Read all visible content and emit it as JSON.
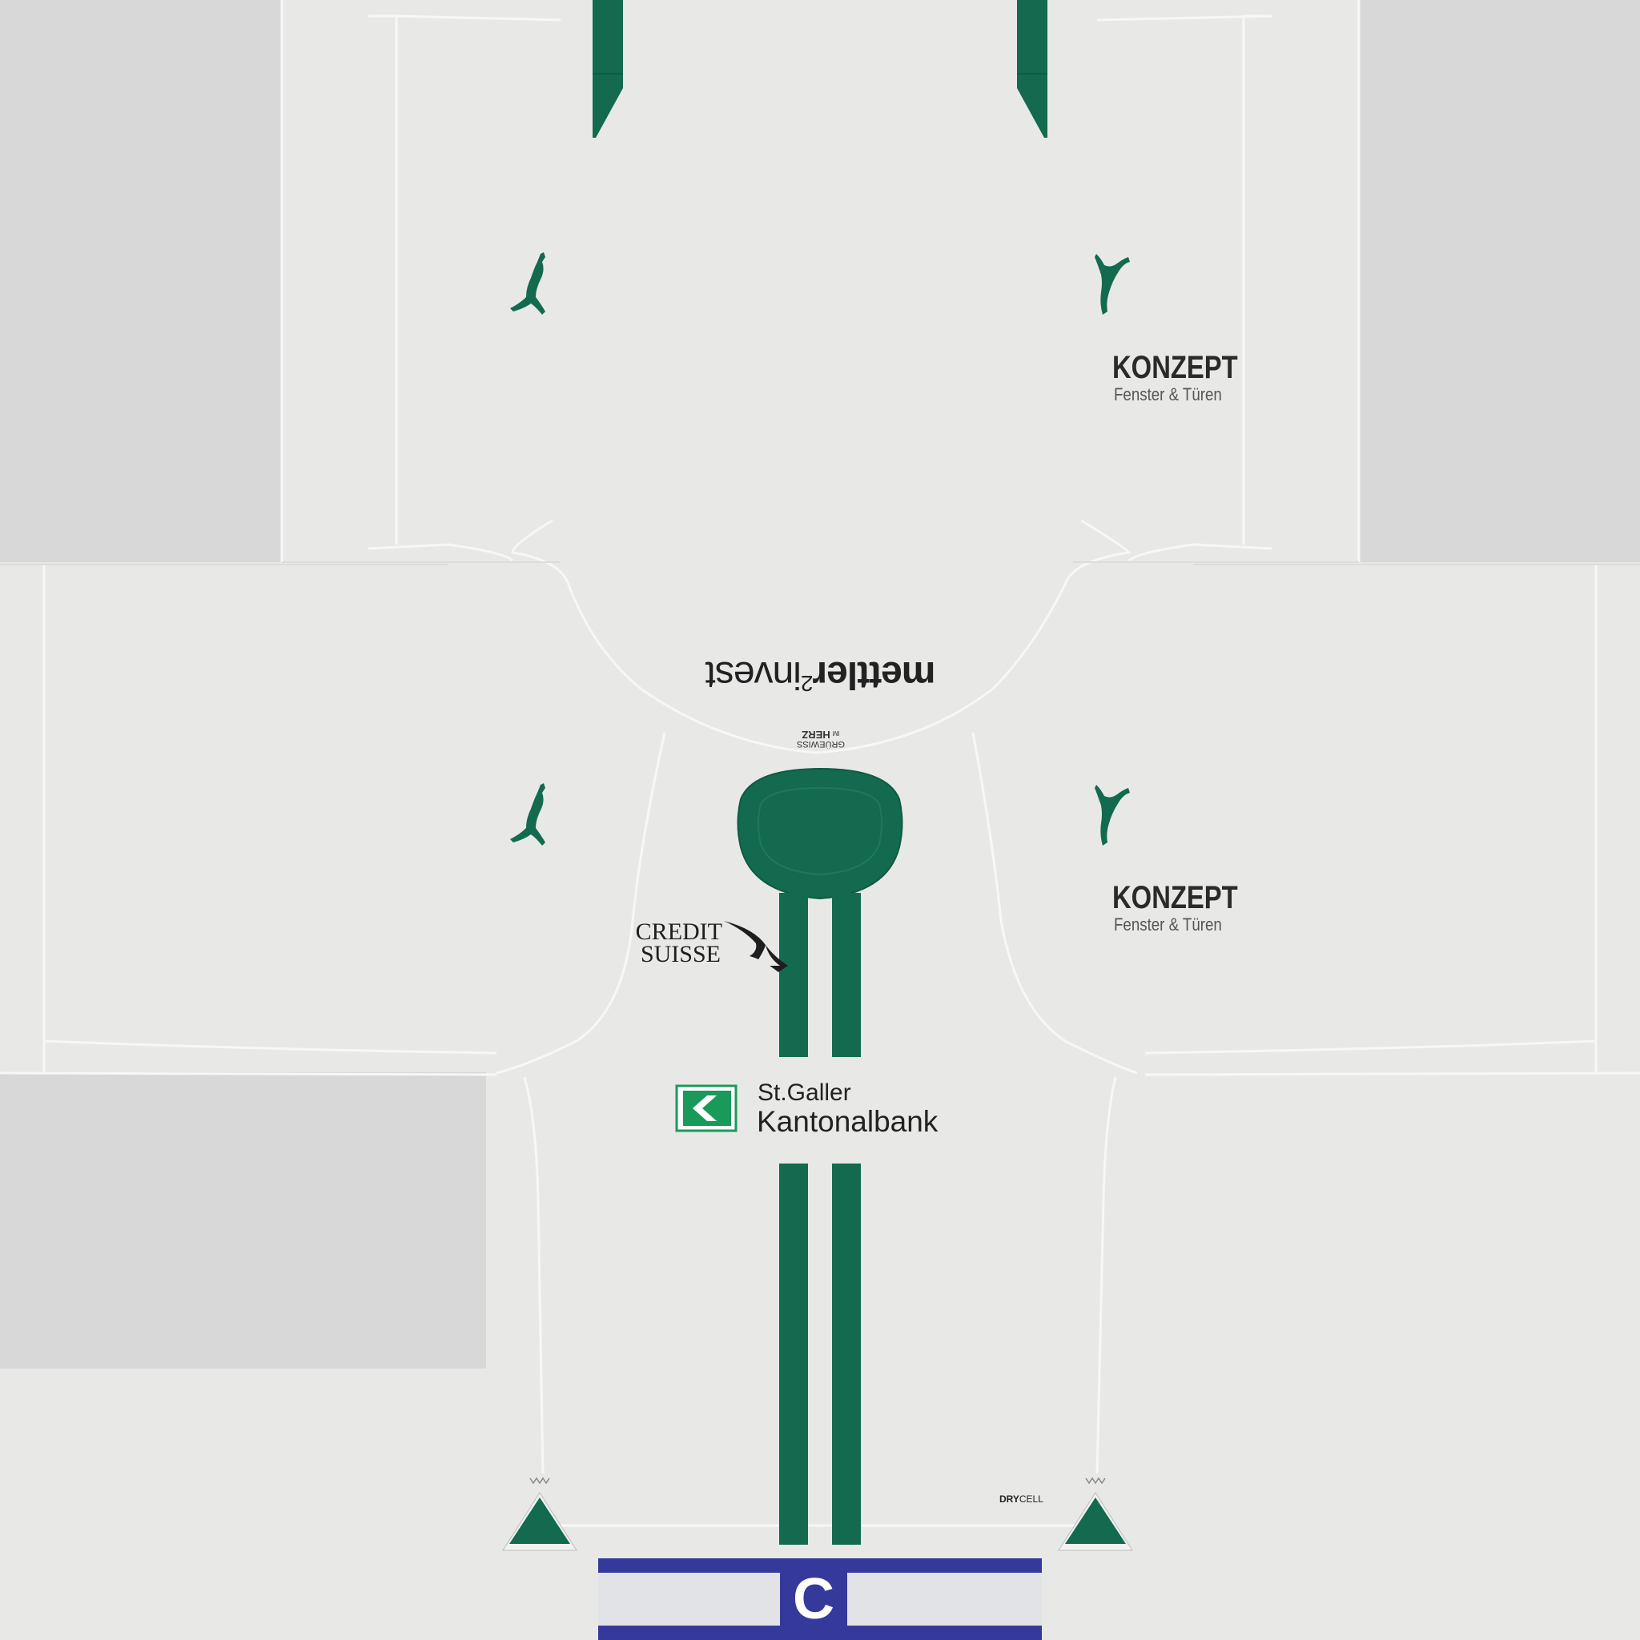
{
  "kit": {
    "colors": {
      "base": "#e8e9e7",
      "template_gray": "#d8d8d8",
      "green": "#136a4f",
      "captain_band": "#35399c"
    },
    "brand_logo": "puma-cat-icon",
    "sponsors": {
      "sleeve_konzept": {
        "name": "KONZEPT",
        "sub": "Fenster & Türen"
      },
      "back_mettler": {
        "bold": "mettler",
        "sup": "2",
        "rest": "invest"
      },
      "collar_tag": {
        "line1": "GRÜEWISS",
        "line2": "IM",
        "line3": "HERZ"
      },
      "credit_suisse": {
        "line1": "CREDIT",
        "line2": "SUISSE"
      },
      "main": {
        "line1": "St.Galler",
        "line2": "Kantonalbank"
      },
      "fabric_tech": {
        "bold": "DRY",
        "rest": "CELL"
      }
    },
    "captain_armband": {
      "letter": "C"
    }
  }
}
